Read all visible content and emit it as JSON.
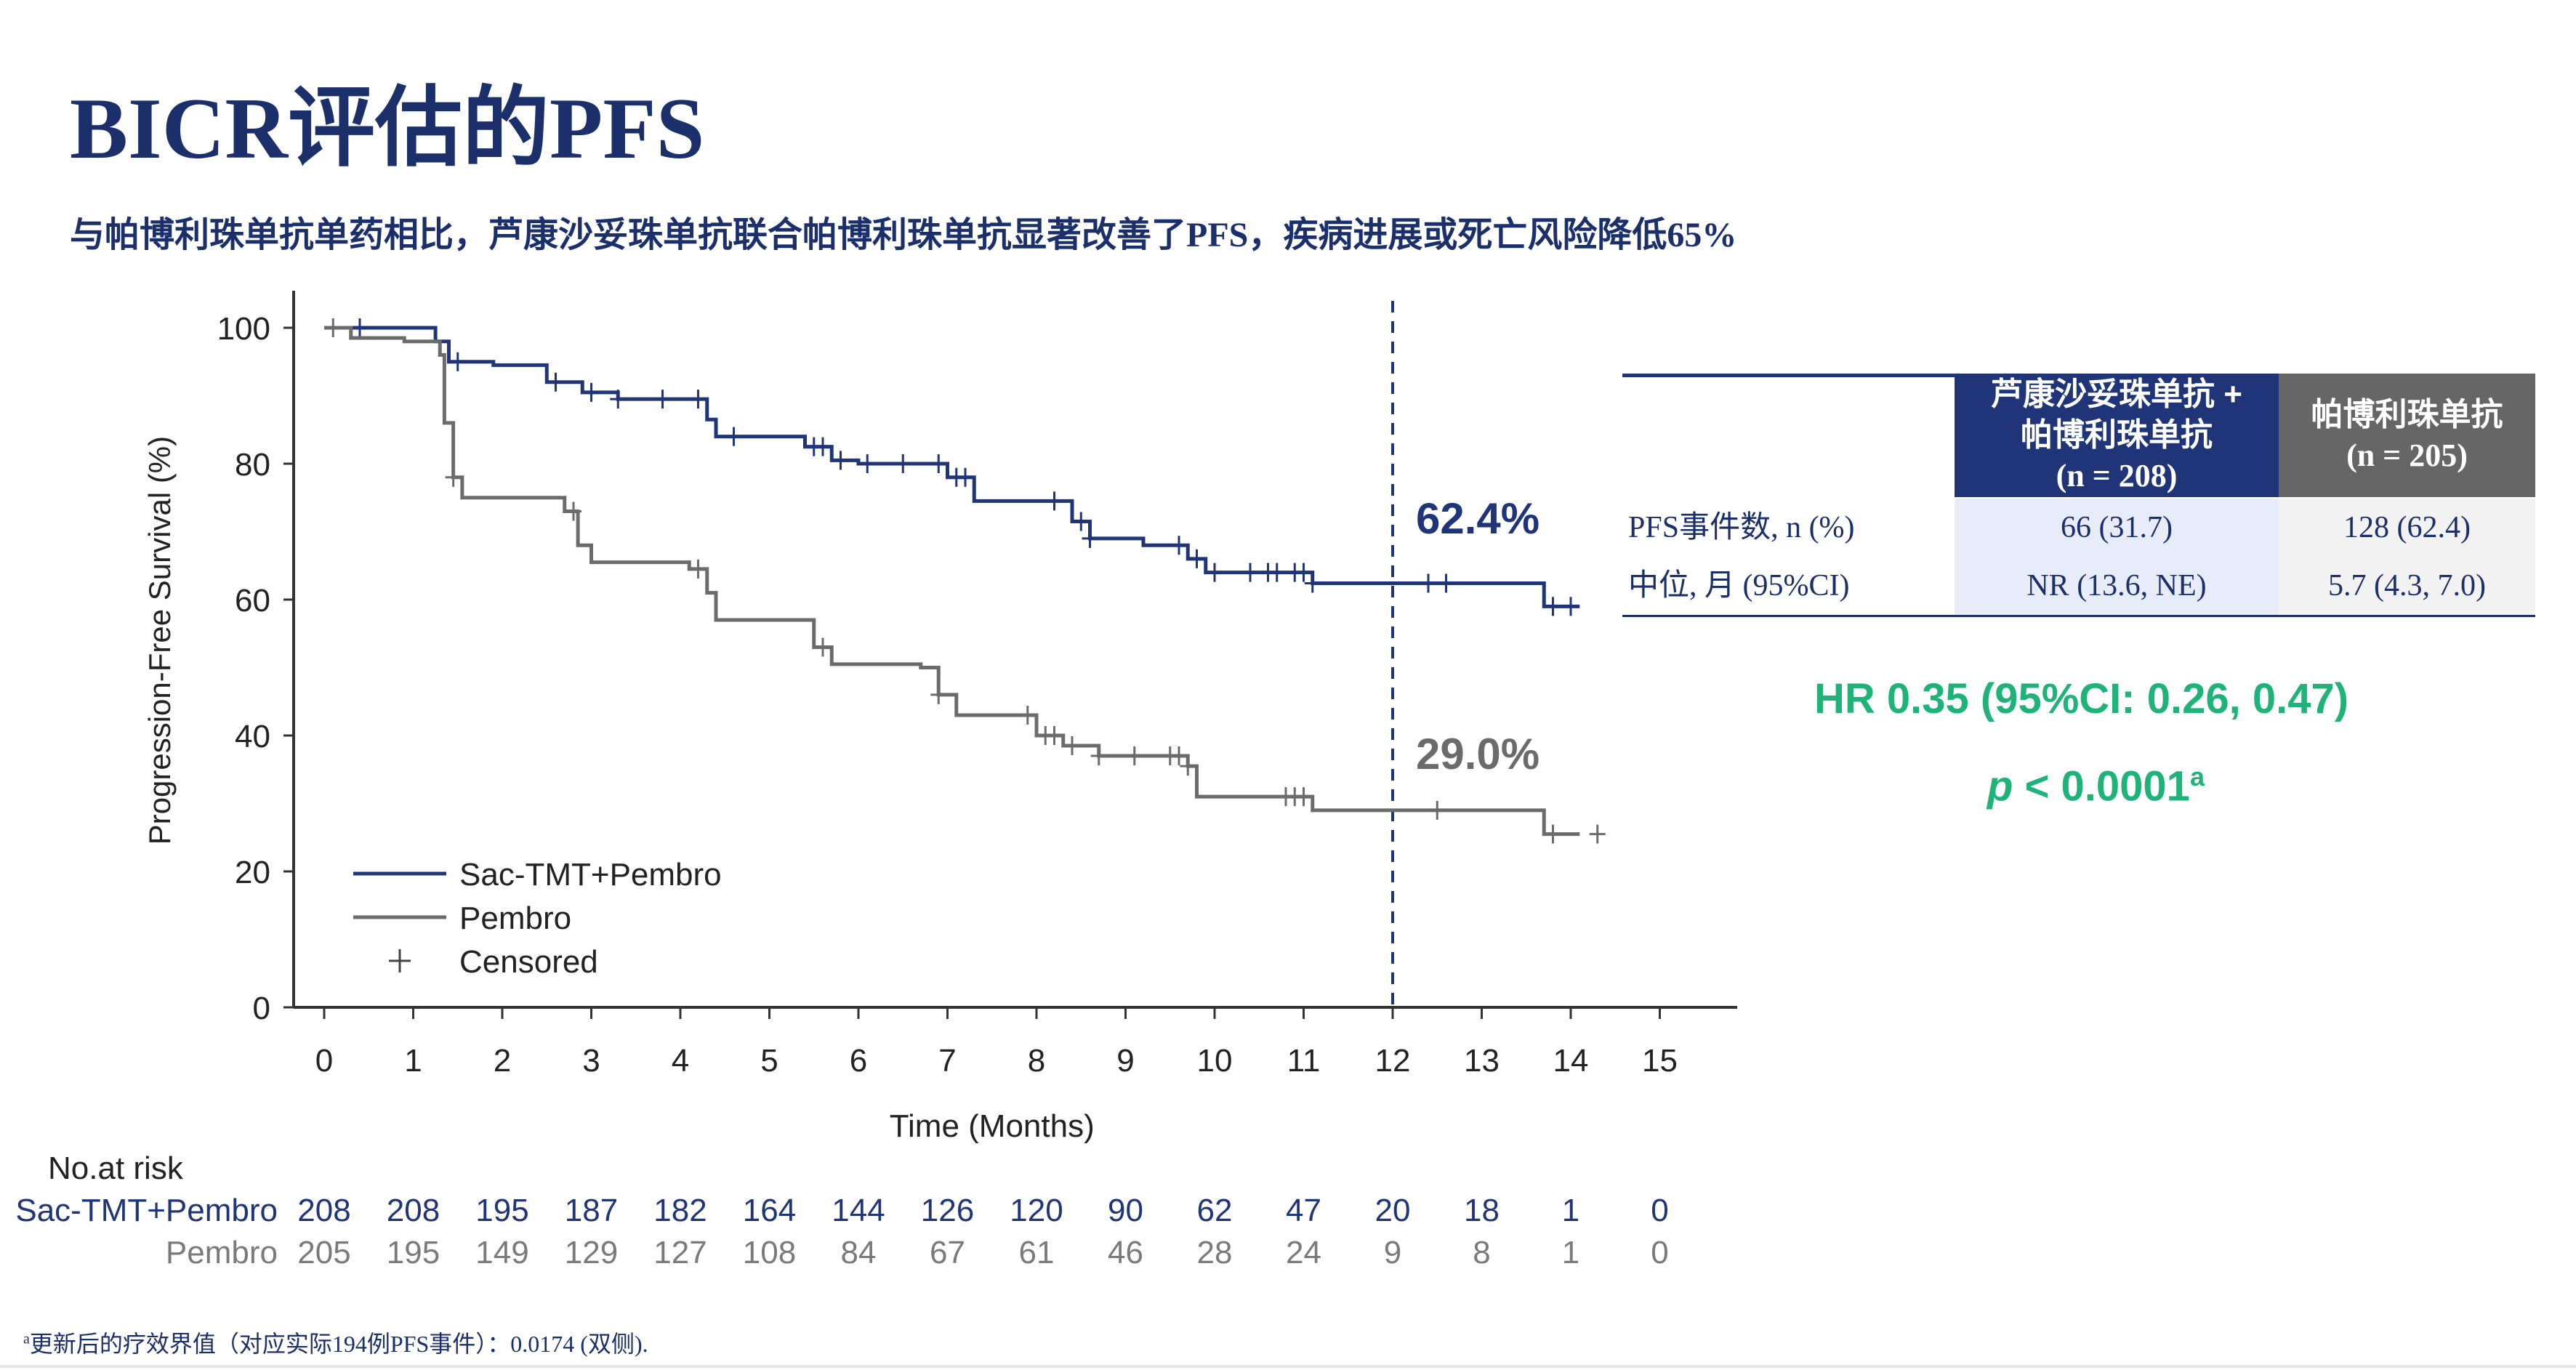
{
  "title": "BICR评估的PFS",
  "subtitle": "与帕博利珠单抗单药相比，芦康沙妥珠单抗联合帕博利珠单抗显著改善了PFS，疾病进展或死亡风险降低65%",
  "colors": {
    "sac": "#1f3577",
    "pembro": "#6b6b6b",
    "accent": "#1fb37a",
    "navy": "#1b2f6b"
  },
  "chart_data": {
    "type": "line",
    "xlabel": "Time (Months)",
    "ylabel": "Progression-Free Survival (%)",
    "xlim": [
      0,
      15
    ],
    "ylim": [
      0,
      100
    ],
    "xticks": [
      0,
      1,
      2,
      3,
      4,
      5,
      6,
      7,
      8,
      9,
      10,
      11,
      12,
      13,
      14,
      15
    ],
    "yticks": [
      0,
      20,
      40,
      60,
      80,
      100
    ],
    "reference_line_x": 12,
    "annotations": [
      {
        "text": "62.4%",
        "series": "Sac-TMT+Pembro"
      },
      {
        "text": "29.0%",
        "series": "Pembro"
      }
    ],
    "legend": [
      "Sac-TMT+Pembro",
      "Pembro",
      "Censored"
    ],
    "legend_position": "bottom-left",
    "series": [
      {
        "name": "Sac-TMT+Pembro",
        "x": [
          0,
          1.05,
          1.25,
          1.4,
          1.9,
          2.5,
          2.9,
          3.3,
          4.1,
          4.3,
          4.4,
          5.4,
          5.7,
          6.0,
          6.8,
          7.0,
          7.3,
          8.2,
          8.4,
          8.6,
          9.2,
          9.7,
          9.9,
          11.1,
          13.6,
          13.7,
          14.1
        ],
        "y": [
          100,
          100,
          98,
          95,
          94.5,
          92,
          90.5,
          89.5,
          89.5,
          86.5,
          84,
          82.5,
          80.5,
          80,
          80,
          78,
          74.5,
          74.5,
          71.5,
          69,
          68,
          66,
          64,
          62.4,
          62.4,
          59,
          59
        ],
        "censored_x": [
          0.4,
          1.5,
          2.6,
          3.0,
          3.3,
          3.8,
          4.2,
          4.6,
          5.5,
          5.6,
          5.8,
          6.1,
          6.5,
          6.9,
          7.1,
          7.2,
          8.2,
          8.5,
          8.6,
          9.6,
          9.8,
          10.0,
          10.4,
          10.6,
          10.7,
          10.9,
          11.0,
          11.1,
          12.4,
          12.6,
          13.8,
          14.0
        ]
      },
      {
        "name": "Pembro",
        "x": [
          0,
          0.3,
          0.9,
          1.3,
          1.35,
          1.45,
          1.55,
          2.7,
          2.85,
          3.0,
          3.5,
          4.1,
          4.3,
          4.4,
          5.4,
          5.5,
          5.7,
          6.7,
          6.9,
          7.1,
          8.0,
          8.3,
          8.7,
          9.5,
          9.7,
          9.8,
          10.9,
          11.1,
          13.7,
          14.1
        ],
        "y": [
          100,
          98.5,
          98,
          96,
          86,
          78,
          75,
          73,
          68,
          65.5,
          65.5,
          64.5,
          61,
          57,
          57,
          53,
          50.5,
          50,
          46,
          43,
          40,
          38.5,
          37,
          37,
          35.5,
          31,
          31,
          29,
          25.5,
          25.5
        ],
        "censored_x": [
          0.1,
          1.45,
          2.8,
          4.2,
          5.6,
          6.9,
          7.9,
          8.1,
          8.2,
          8.4,
          8.7,
          9.1,
          9.5,
          9.6,
          9.7,
          10.8,
          10.9,
          11.0,
          12.5,
          13.8,
          14.3
        ]
      }
    ]
  },
  "risk_table": {
    "title": "No.at risk",
    "rows": [
      {
        "label": "Sac-TMT+Pembro",
        "values": [
          "208",
          "208",
          "195",
          "187",
          "182",
          "164",
          "144",
          "126",
          "120",
          "90",
          "62",
          "47",
          "20",
          "18",
          "1",
          "0"
        ]
      },
      {
        "label": "Pembro",
        "values": [
          "205",
          "195",
          "149",
          "129",
          "127",
          "108",
          "84",
          "67",
          "61",
          "46",
          "28",
          "24",
          "9",
          "8",
          "1",
          "0"
        ]
      }
    ]
  },
  "summary_table": {
    "headers": [
      {
        "line1": "芦康沙妥珠单抗 +",
        "line2": "帕博利珠单抗",
        "line3": "(n = 208)"
      },
      {
        "line1": "帕博利珠单抗",
        "line2": "(n = 205)"
      }
    ],
    "rows": [
      {
        "label": "PFS事件数, n (%)",
        "v1": "66 (31.7)",
        "v2": "128 (62.4)"
      },
      {
        "label": "中位, 月 (95%CI)",
        "v1": "NR (13.6, NE)",
        "v2": "5.7 (4.3, 7.0)"
      }
    ]
  },
  "hr_text": "HR 0.35 (95%CI: 0.26, 0.47)",
  "p_italic": "p",
  "p_rest": " < 0.0001",
  "p_sup": "a",
  "footnote_sup": "a",
  "footnote": "更新后的疗效界值（对应实际194例PFS事件）：0.0174 (双侧)."
}
